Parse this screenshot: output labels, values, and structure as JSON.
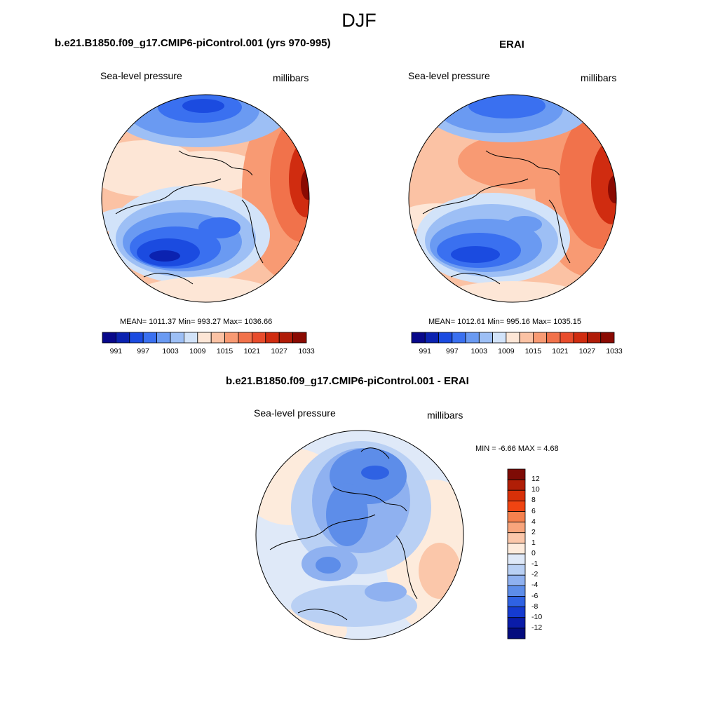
{
  "figure_title": "DJF",
  "panels": {
    "model": {
      "title": "b.e21.B1850.f09_g17.CMIP6-piControl.001 (yrs 970-995)",
      "left_label": "Sea-level pressure",
      "right_label": "millibars",
      "stats": "MEAN= 1011.37  Min= 993.27  Max= 1036.66",
      "mean": 1011.37,
      "min": 993.27,
      "max": 1036.66
    },
    "obs": {
      "title": "ERAI",
      "left_label": "Sea-level pressure",
      "right_label": "millibars",
      "stats": "MEAN= 1012.61  Min= 995.16  Max= 1035.15",
      "mean": 1012.61,
      "min": 995.16,
      "max": 1035.15
    },
    "diff": {
      "title": "b.e21.B1850.f09_g17.CMIP6-piControl.001 - ERAI",
      "left_label": "Sea-level pressure",
      "right_label": "millibars",
      "minmax": "MIN =  -6.66 MAX =   4.68",
      "min": -6.66,
      "max": 4.68
    }
  },
  "abs_colorbar": {
    "labels": [
      "991",
      "997",
      "1003",
      "1009",
      "1015",
      "1021",
      "1027",
      "1033"
    ],
    "colors": [
      "#08088a",
      "#0b22b0",
      "#1b4be0",
      "#3a70f0",
      "#6a9af2",
      "#9dbff5",
      "#d2e3f9",
      "#fde6d6",
      "#fbc2a4",
      "#f89a73",
      "#f1724b",
      "#e84c2c",
      "#d02c10",
      "#b01c08",
      "#8a0a02"
    ]
  },
  "diff_colorbar": {
    "labels": [
      "12",
      "10",
      "8",
      "6",
      "4",
      "2",
      "1",
      "0",
      "-1",
      "-2",
      "-4",
      "-6",
      "-8",
      "-10",
      "-12"
    ],
    "colors": [
      "#7e0b05",
      "#b01e06",
      "#d83008",
      "#f04412",
      "#f5814e",
      "#f8a57c",
      "#fbc7aa",
      "#fdebdc",
      "#dfe9f8",
      "#b9d0f4",
      "#8fb1f0",
      "#5d8de9",
      "#2f62e3",
      "#153bd0",
      "#0a1ca8",
      "#040c7e"
    ]
  }
}
